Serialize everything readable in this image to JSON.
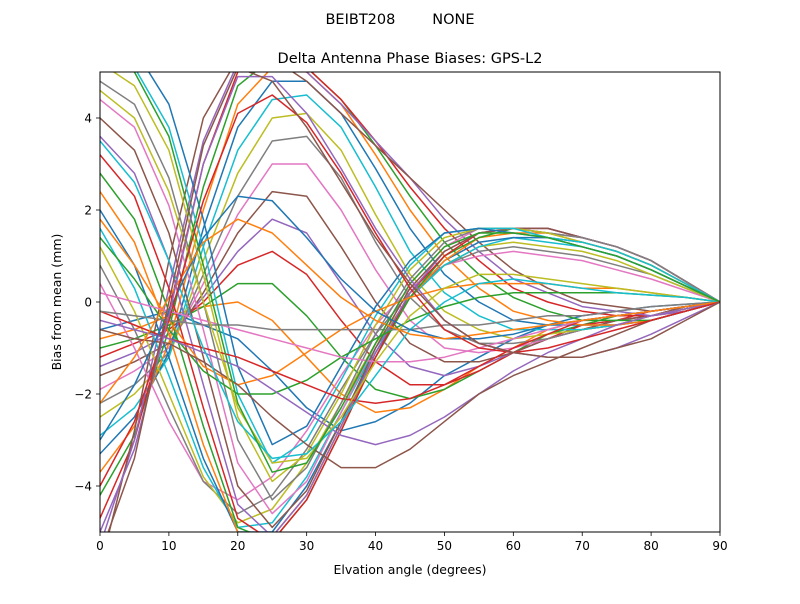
{
  "figure": {
    "suptitle": "BEIBT208        NONE"
  },
  "chart_data": {
    "type": "line",
    "title": "Delta Antenna Phase Biases: GPS-L2",
    "xlabel": "Elvation angle (degrees)",
    "ylabel": "Bias from mean (mm)",
    "xlim": [
      0,
      90
    ],
    "ylim": [
      -5,
      5
    ],
    "x_ticks": [
      0,
      10,
      20,
      30,
      40,
      50,
      60,
      70,
      80,
      90
    ],
    "y_ticks": [
      -4,
      -2,
      0,
      2,
      4
    ],
    "grid": false,
    "legend": "none",
    "x": [
      0,
      5,
      10,
      15,
      20,
      25,
      30,
      35,
      40,
      45,
      50,
      55,
      60,
      65,
      70,
      75,
      80,
      85,
      90
    ],
    "colors": [
      "#1f77b4",
      "#ff7f0e",
      "#2ca02c",
      "#d62728",
      "#9467bd",
      "#8c564b",
      "#e377c2",
      "#7f7f7f",
      "#bcbd22",
      "#17becf"
    ],
    "series": [
      {
        "values": [
          -0.6,
          -0.4,
          -0.2,
          -0.5,
          -0.8,
          -1.5,
          -2.3,
          -2.8,
          -2.6,
          -2.2,
          -1.6,
          -1.2,
          -0.8,
          -0.5,
          -0.3,
          -0.2,
          -0.1,
          -0.05,
          0
        ]
      },
      {
        "values": [
          -0.8,
          -0.6,
          -0.3,
          -0.1,
          0.0,
          -0.4,
          -1.2,
          -2.0,
          -2.4,
          -2.3,
          -1.9,
          -1.4,
          -1.0,
          -0.6,
          -0.4,
          -0.3,
          -0.2,
          -0.1,
          0
        ]
      },
      {
        "values": [
          -1.0,
          -0.8,
          -0.5,
          -0.1,
          0.4,
          0.4,
          -0.3,
          -1.2,
          -1.9,
          -2.1,
          -1.9,
          -1.5,
          -1.1,
          -0.7,
          -0.5,
          -0.3,
          -0.2,
          -0.1,
          0
        ]
      },
      {
        "values": [
          -1.2,
          -0.9,
          -0.6,
          0.0,
          0.8,
          1.1,
          0.6,
          -0.4,
          -1.3,
          -1.8,
          -1.8,
          -1.5,
          -1.1,
          -0.8,
          -0.5,
          -0.4,
          -0.2,
          -0.1,
          0
        ]
      },
      {
        "values": [
          -1.4,
          -1.1,
          -0.7,
          0.1,
          1.1,
          1.8,
          1.5,
          0.4,
          -0.7,
          -1.4,
          -1.6,
          -1.4,
          -1.1,
          -0.8,
          -0.6,
          -0.4,
          -0.3,
          -0.1,
          0
        ]
      },
      {
        "values": [
          -1.6,
          -1.3,
          -0.9,
          0.2,
          1.5,
          2.4,
          2.3,
          1.2,
          0.0,
          -0.9,
          -1.3,
          -1.3,
          -1.1,
          -0.8,
          -0.6,
          -0.4,
          -0.3,
          -0.1,
          0
        ]
      },
      {
        "values": [
          -1.9,
          -1.5,
          -1.0,
          0.4,
          1.9,
          3.0,
          3.0,
          2.0,
          0.7,
          -0.4,
          -1.0,
          -1.1,
          -1.0,
          -0.8,
          -0.6,
          -0.5,
          -0.3,
          -0.15,
          0
        ]
      },
      {
        "values": [
          -2.2,
          -1.8,
          -1.1,
          0.6,
          2.3,
          3.5,
          3.6,
          2.7,
          1.3,
          0.1,
          -0.6,
          -0.9,
          -0.9,
          -0.8,
          -0.6,
          -0.5,
          -0.3,
          -0.15,
          0
        ]
      },
      {
        "values": [
          -2.5,
          -2.0,
          -1.2,
          0.9,
          2.8,
          4.0,
          4.1,
          3.3,
          1.9,
          0.6,
          -0.2,
          -0.6,
          -0.8,
          -0.7,
          -0.6,
          -0.5,
          -0.3,
          -0.15,
          0
        ]
      },
      {
        "values": [
          -2.9,
          -2.3,
          -1.2,
          1.2,
          3.3,
          4.4,
          4.5,
          3.8,
          2.5,
          1.1,
          0.2,
          -0.3,
          -0.6,
          -0.6,
          -0.6,
          -0.5,
          -0.4,
          -0.2,
          0
        ]
      },
      {
        "values": [
          -3.3,
          -2.5,
          -1.1,
          1.6,
          3.8,
          4.8,
          4.8,
          4.1,
          2.9,
          1.6,
          0.6,
          0.0,
          -0.4,
          -0.5,
          -0.5,
          -0.5,
          -0.4,
          -0.2,
          0
        ]
      },
      {
        "values": [
          -3.7,
          -2.7,
          -0.9,
          2.0,
          4.3,
          5.1,
          5.0,
          4.3,
          3.2,
          2.0,
          1.0,
          0.3,
          -0.2,
          -0.4,
          -0.5,
          -0.5,
          -0.4,
          -0.2,
          0
        ]
      },
      {
        "values": [
          -4.2,
          -2.9,
          -0.6,
          2.5,
          4.7,
          5.3,
          5.1,
          4.4,
          3.4,
          2.3,
          1.3,
          0.6,
          0.1,
          -0.2,
          -0.4,
          -0.4,
          -0.4,
          -0.2,
          0
        ]
      },
      {
        "values": [
          -4.7,
          -3.0,
          -0.2,
          3.0,
          5.0,
          5.4,
          5.1,
          4.4,
          3.5,
          2.5,
          1.6,
          0.9,
          0.3,
          0.0,
          -0.2,
          -0.3,
          -0.3,
          -0.2,
          0
        ]
      },
      {
        "values": [
          -5.3,
          -3.0,
          0.3,
          3.5,
          5.2,
          5.4,
          5.0,
          4.3,
          3.5,
          2.7,
          1.8,
          1.1,
          0.5,
          0.2,
          -0.1,
          -0.2,
          -0.3,
          -0.2,
          0
        ]
      },
      {
        "values": [
          -5.8,
          -2.8,
          0.9,
          4.0,
          5.3,
          5.3,
          4.8,
          4.1,
          3.4,
          2.7,
          2.0,
          1.3,
          0.7,
          0.3,
          0.0,
          -0.1,
          -0.2,
          -0.1,
          0
        ]
      },
      {
        "values": [
          0.4,
          -1.0,
          -2.6,
          -3.9,
          -4.3,
          -3.8,
          -2.8,
          -1.6,
          -0.5,
          0.3,
          0.8,
          1.0,
          1.1,
          1.0,
          0.9,
          0.7,
          0.5,
          0.25,
          0
        ]
      },
      {
        "values": [
          0.8,
          -0.6,
          -2.3,
          -3.9,
          -4.6,
          -4.2,
          -3.2,
          -1.9,
          -0.7,
          0.2,
          0.8,
          1.1,
          1.2,
          1.1,
          1.0,
          0.8,
          0.6,
          0.3,
          0
        ]
      },
      {
        "values": [
          1.2,
          -0.2,
          -2.0,
          -3.8,
          -4.8,
          -4.5,
          -3.5,
          -2.2,
          -0.9,
          0.1,
          0.8,
          1.2,
          1.3,
          1.2,
          1.1,
          0.9,
          0.6,
          0.3,
          0
        ]
      },
      {
        "values": [
          1.6,
          0.3,
          -1.6,
          -3.6,
          -4.9,
          -4.8,
          -3.8,
          -2.4,
          -1.0,
          0.1,
          0.8,
          1.2,
          1.4,
          1.3,
          1.2,
          1.0,
          0.7,
          0.35,
          0
        ]
      },
      {
        "values": [
          2.0,
          0.8,
          -1.2,
          -3.4,
          -5.0,
          -5.0,
          -4.0,
          -2.6,
          -1.1,
          0.1,
          0.9,
          1.3,
          1.4,
          1.4,
          1.3,
          1.1,
          0.8,
          0.4,
          0
        ]
      },
      {
        "values": [
          2.4,
          1.3,
          -0.7,
          -3.1,
          -5.0,
          -5.1,
          -4.2,
          -2.7,
          -1.2,
          0.1,
          0.9,
          1.4,
          1.5,
          1.5,
          1.3,
          1.1,
          0.8,
          0.4,
          0
        ]
      },
      {
        "values": [
          2.8,
          1.8,
          -0.2,
          -2.7,
          -4.9,
          -5.2,
          -4.3,
          -2.8,
          -1.2,
          0.1,
          1.0,
          1.4,
          1.6,
          1.5,
          1.4,
          1.2,
          0.9,
          0.45,
          0
        ]
      },
      {
        "values": [
          3.2,
          2.3,
          0.3,
          -2.3,
          -4.7,
          -5.2,
          -4.3,
          -2.8,
          -1.2,
          0.2,
          1.0,
          1.5,
          1.6,
          1.6,
          1.4,
          1.2,
          0.9,
          0.45,
          0
        ]
      },
      {
        "values": [
          3.6,
          2.8,
          0.9,
          -1.8,
          -4.4,
          -5.1,
          -4.2,
          -2.7,
          -1.1,
          0.2,
          1.1,
          1.5,
          1.6,
          1.6,
          1.4,
          1.2,
          0.9,
          0.45,
          0
        ]
      },
      {
        "values": [
          4.0,
          3.3,
          1.5,
          -1.2,
          -4.0,
          -4.9,
          -4.1,
          -2.6,
          -1.0,
          0.3,
          1.1,
          1.5,
          1.6,
          1.6,
          1.4,
          1.2,
          0.9,
          0.45,
          0
        ]
      },
      {
        "values": [
          4.4,
          3.8,
          2.1,
          -0.6,
          -3.5,
          -4.6,
          -3.9,
          -2.4,
          -0.9,
          0.4,
          1.2,
          1.6,
          1.6,
          1.5,
          1.4,
          1.2,
          0.9,
          0.45,
          0
        ]
      },
      {
        "values": [
          4.8,
          4.3,
          2.7,
          0.0,
          -3.0,
          -4.3,
          -3.6,
          -2.2,
          -0.7,
          0.5,
          1.3,
          1.6,
          1.6,
          1.5,
          1.4,
          1.2,
          0.9,
          0.45,
          0
        ]
      },
      {
        "values": [
          5.2,
          4.7,
          3.3,
          0.6,
          -2.5,
          -3.9,
          -3.3,
          -2.0,
          -0.5,
          0.7,
          1.4,
          1.6,
          1.6,
          1.5,
          1.3,
          1.1,
          0.8,
          0.4,
          0
        ]
      },
      {
        "values": [
          5.6,
          5.1,
          3.8,
          1.2,
          -2.0,
          -3.5,
          -3.0,
          -1.7,
          -0.3,
          0.8,
          1.5,
          1.6,
          1.6,
          1.4,
          1.3,
          1.1,
          0.8,
          0.4,
          0
        ]
      },
      {
        "values": [
          6.0,
          5.5,
          4.3,
          1.8,
          -1.4,
          -3.1,
          -2.7,
          -1.4,
          -0.1,
          0.9,
          1.5,
          1.6,
          1.5,
          1.4,
          1.2,
          1.0,
          0.7,
          0.35,
          0
        ]
      },
      {
        "values": [
          1.8,
          0.8,
          -0.4,
          -1.4,
          -1.8,
          -1.6,
          -1.1,
          -0.6,
          -0.2,
          0.1,
          0.3,
          0.4,
          0.4,
          0.4,
          0.3,
          0.3,
          0.2,
          0.1,
          0
        ]
      },
      {
        "values": [
          1.4,
          0.5,
          -0.6,
          -1.5,
          -2.0,
          -2.0,
          -1.7,
          -1.2,
          -0.8,
          -0.4,
          -0.1,
          0.1,
          0.2,
          0.2,
          0.2,
          0.2,
          0.15,
          0.1,
          0
        ]
      },
      {
        "values": [
          -0.2,
          -0.5,
          -0.8,
          -1.0,
          -1.2,
          -1.5,
          -1.8,
          -2.1,
          -2.2,
          -2.1,
          -1.8,
          -1.4,
          -1.0,
          -0.7,
          -0.4,
          -0.3,
          -0.2,
          -0.1,
          0
        ]
      },
      {
        "values": [
          -0.4,
          -0.6,
          -0.8,
          -1.1,
          -1.4,
          -1.9,
          -2.4,
          -2.9,
          -3.1,
          -2.9,
          -2.5,
          -2.0,
          -1.5,
          -1.1,
          -0.8,
          -0.5,
          -0.3,
          -0.15,
          0
        ]
      },
      {
        "values": [
          -0.6,
          -0.8,
          -0.9,
          -1.3,
          -1.8,
          -2.5,
          -3.1,
          -3.6,
          -3.6,
          -3.2,
          -2.6,
          -2.0,
          -1.6,
          -1.3,
          -1.0,
          -0.7,
          -0.4,
          -0.2,
          0
        ]
      },
      {
        "values": [
          0.2,
          0.0,
          -0.2,
          -0.4,
          -0.6,
          -0.8,
          -1.0,
          -1.2,
          -1.3,
          -1.3,
          -1.2,
          -1.0,
          -0.8,
          -0.6,
          -0.4,
          -0.3,
          -0.2,
          -0.1,
          0
        ]
      },
      {
        "values": [
          -0.2,
          -0.3,
          -0.4,
          -0.5,
          -0.5,
          -0.6,
          -0.6,
          -0.6,
          -0.6,
          -0.6,
          -0.5,
          -0.5,
          -0.4,
          -0.3,
          -0.3,
          -0.2,
          -0.1,
          -0.05,
          0
        ]
      },
      {
        "values": [
          4.6,
          4.0,
          2.4,
          0.0,
          -2.3,
          -3.5,
          -3.4,
          -2.5,
          -1.3,
          -0.3,
          0.3,
          0.6,
          0.6,
          0.5,
          0.4,
          0.3,
          0.2,
          0.1,
          0
        ]
      },
      {
        "values": [
          3.5,
          2.6,
          0.9,
          -1.0,
          -2.6,
          -3.4,
          -3.3,
          -2.6,
          -1.6,
          -0.6,
          0.0,
          0.4,
          0.5,
          0.4,
          0.3,
          0.2,
          0.15,
          0.1,
          0
        ]
      },
      {
        "values": [
          -3.0,
          -1.8,
          -0.2,
          1.4,
          2.3,
          2.2,
          1.4,
          0.5,
          -0.2,
          -0.6,
          -0.8,
          -0.8,
          -0.7,
          -0.5,
          -0.4,
          -0.3,
          -0.2,
          -0.1,
          0
        ]
      },
      {
        "values": [
          -2.2,
          -1.2,
          0.1,
          1.3,
          1.8,
          1.5,
          0.8,
          0.1,
          -0.4,
          -0.7,
          -0.8,
          -0.7,
          -0.6,
          -0.5,
          -0.4,
          -0.3,
          -0.2,
          -0.1,
          0
        ]
      },
      {
        "values": [
          5.5,
          5.0,
          3.6,
          0.8,
          -2.2,
          -3.7,
          -3.5,
          -2.3,
          -0.9,
          0.4,
          1.2,
          1.5,
          1.5,
          1.4,
          1.2,
          1.0,
          0.7,
          0.35,
          0
        ]
      },
      {
        "values": [
          -4.0,
          -2.6,
          -0.4,
          2.2,
          4.1,
          4.5,
          3.9,
          2.8,
          1.5,
          0.3,
          -0.6,
          -1.0,
          -1.1,
          -1.0,
          -0.8,
          -0.6,
          -0.4,
          -0.2,
          0
        ]
      },
      {
        "values": [
          -5.0,
          -3.2,
          -0.3,
          3.0,
          4.9,
          4.9,
          4.1,
          2.9,
          1.6,
          0.5,
          -0.4,
          -0.9,
          -1.1,
          -1.2,
          -1.2,
          -1.0,
          -0.7,
          -0.35,
          0
        ]
      },
      {
        "values": [
          -5.5,
          -3.4,
          0.0,
          3.4,
          5.1,
          4.8,
          3.8,
          2.6,
          1.4,
          0.4,
          -0.4,
          -0.9,
          -1.1,
          -1.2,
          -1.2,
          -1.0,
          -0.8,
          -0.4,
          0
        ]
      }
    ]
  }
}
